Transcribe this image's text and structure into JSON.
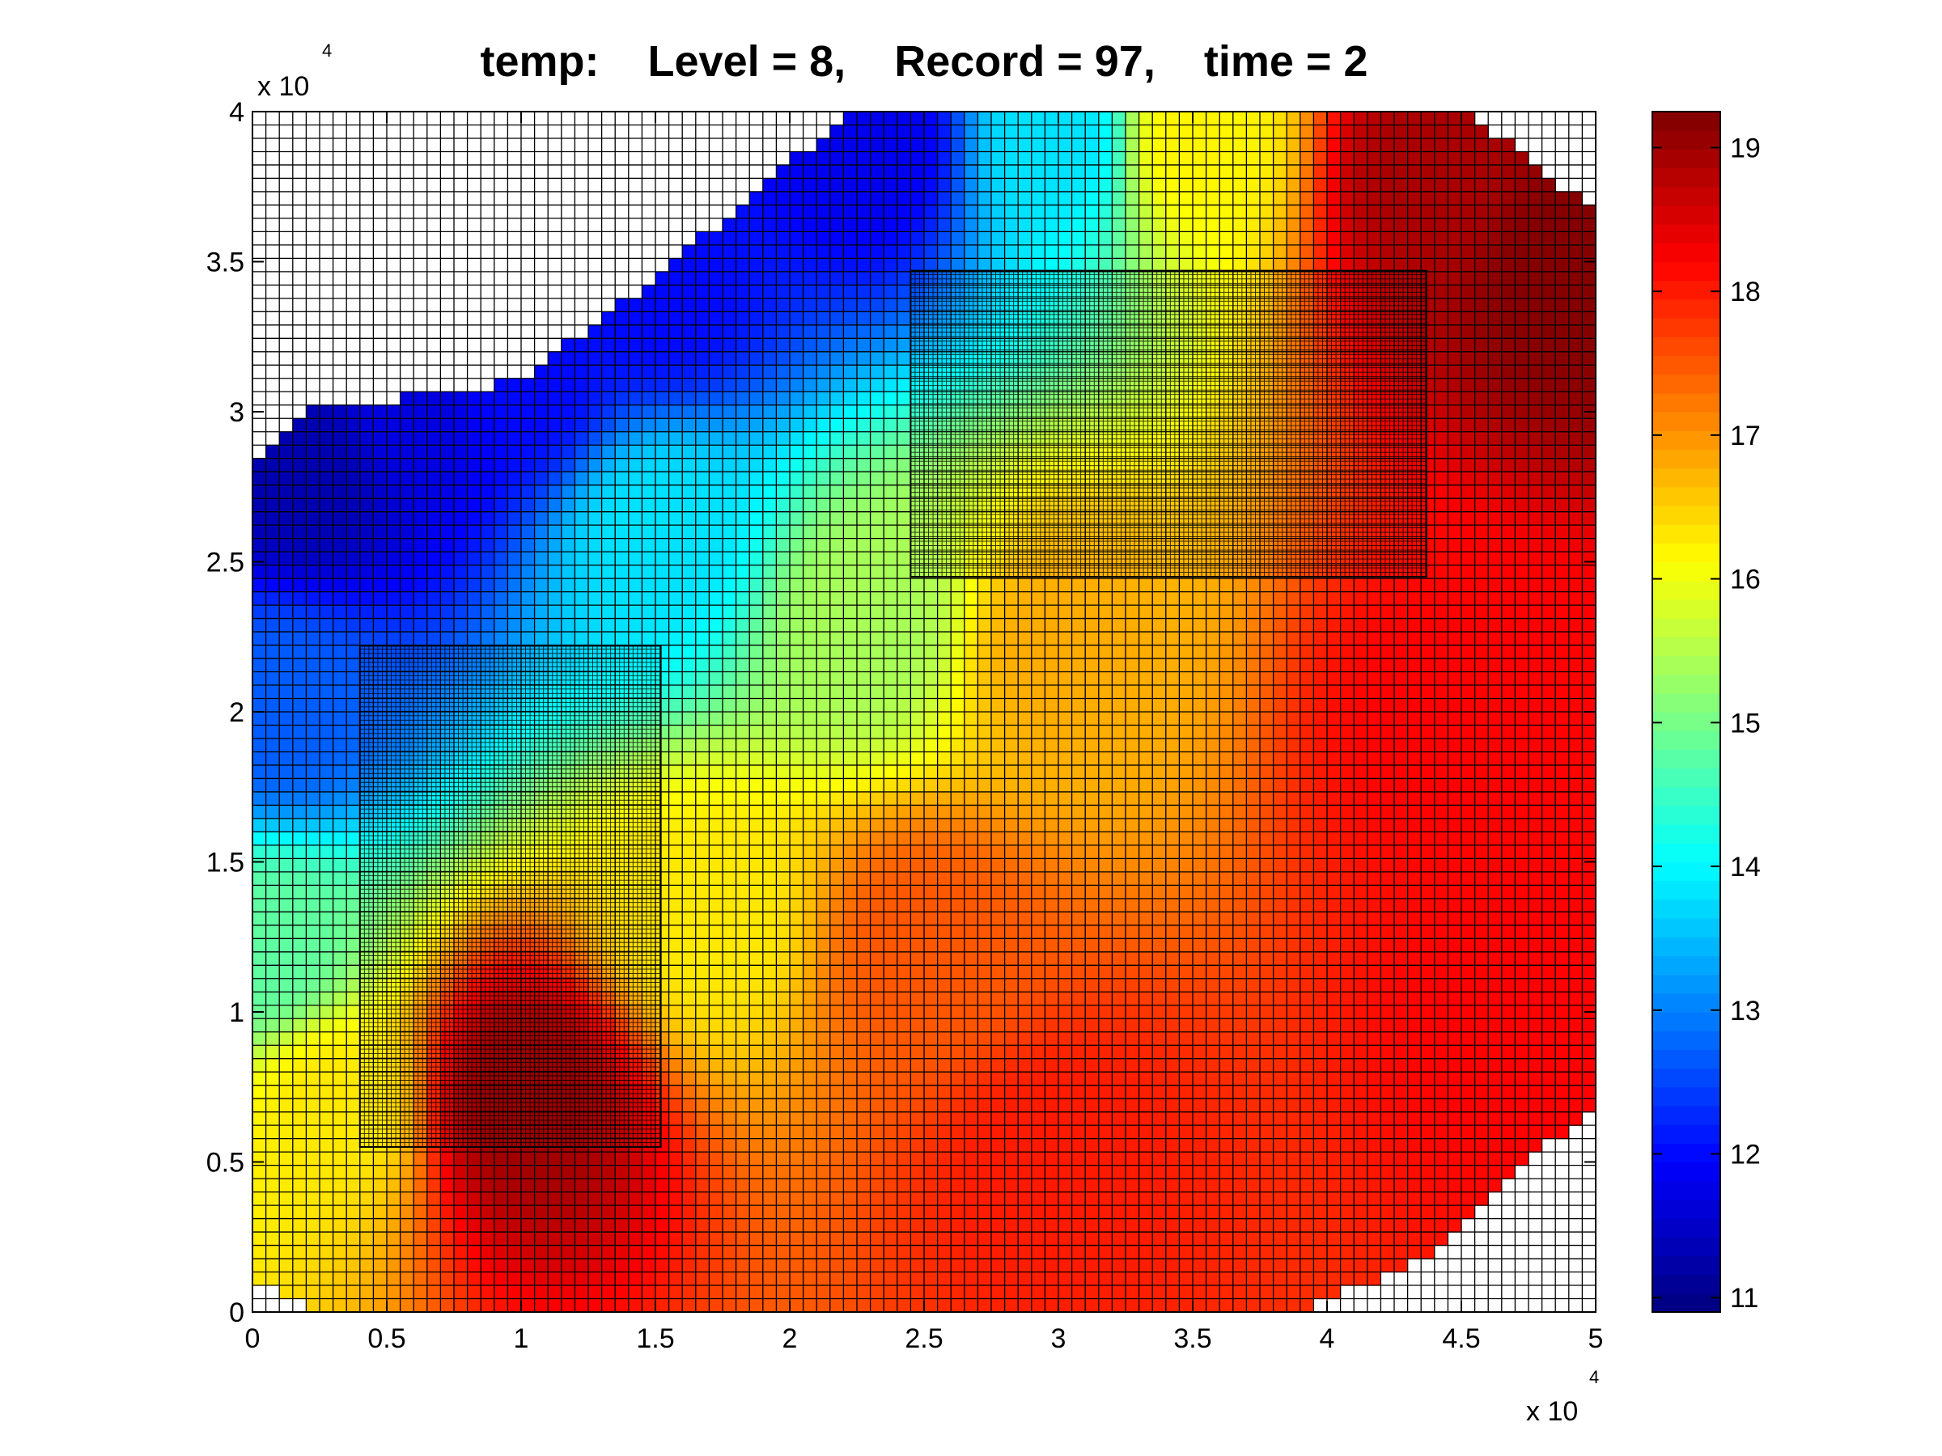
{
  "chart_data": {
    "type": "heatmap",
    "title": "temp:    Level = 8,    Record = 97,    time = 2",
    "xlabel": "",
    "ylabel": "",
    "x_exponent_label": "x 10",
    "x_exponent_power": "4",
    "y_exponent_label": "x 10",
    "y_exponent_power": "4",
    "xlim": [
      0,
      5
    ],
    "ylim": [
      0,
      4
    ],
    "x_ticks": [
      0,
      0.5,
      1,
      1.5,
      2,
      2.5,
      3,
      3.5,
      4,
      4.5,
      5
    ],
    "x_tick_labels": [
      "0",
      "0.5",
      "1",
      "1.5",
      "2",
      "2.5",
      "3",
      "3.5",
      "4",
      "4.5",
      "5"
    ],
    "y_ticks": [
      0,
      0.5,
      1,
      1.5,
      2,
      2.5,
      3,
      3.5,
      4
    ],
    "y_tick_labels": [
      "0",
      "0.5",
      "1",
      "1.5",
      "2",
      "2.5",
      "3",
      "3.5",
      "4"
    ],
    "colorbar": {
      "range": [
        10.9,
        19.25
      ],
      "ticks": [
        11,
        12,
        13,
        14,
        15,
        16,
        17,
        18,
        19
      ],
      "tick_labels": [
        "11",
        "12",
        "13",
        "14",
        "15",
        "16",
        "17",
        "18",
        "19"
      ],
      "colormap": "jet"
    },
    "grid": true,
    "refined_regions": [
      {
        "x": [
          0.4,
          1.52
        ],
        "y": [
          0.55,
          2.22
        ]
      },
      {
        "x": [
          2.45,
          4.37
        ],
        "y": [
          2.45,
          3.47
        ]
      }
    ],
    "domain_outline": [
      [
        0.02,
        0.1
      ],
      [
        0.2,
        0.02
      ],
      [
        0.4,
        0
      ],
      [
        3.9,
        0
      ],
      [
        4.4,
        0.2
      ],
      [
        4.75,
        0.5
      ],
      [
        5.02,
        0.7
      ],
      [
        5.02,
        3.65
      ],
      [
        4.5,
        4.02
      ],
      [
        2.25,
        4.02
      ],
      [
        1.5,
        3.45
      ],
      [
        1.0,
        3.1
      ],
      [
        0.6,
        3.05
      ],
      [
        0.2,
        3.0
      ],
      [
        0.02,
        2.85
      ]
    ],
    "temperature_samples": [
      {
        "x": 0.2,
        "y": 2.8,
        "value": 11.3
      },
      {
        "x": 0.6,
        "y": 3.0,
        "value": 11.7
      },
      {
        "x": 1.0,
        "y": 3.1,
        "value": 12.0
      },
      {
        "x": 1.5,
        "y": 3.4,
        "value": 12.0
      },
      {
        "x": 2.3,
        "y": 3.9,
        "value": 11.8
      },
      {
        "x": 3.0,
        "y": 3.9,
        "value": 13.8
      },
      {
        "x": 3.5,
        "y": 3.9,
        "value": 16.2
      },
      {
        "x": 4.4,
        "y": 3.8,
        "value": 18.9
      },
      {
        "x": 4.9,
        "y": 3.5,
        "value": 19.2
      },
      {
        "x": 0.1,
        "y": 2.0,
        "value": 12.7
      },
      {
        "x": 1.5,
        "y": 2.6,
        "value": 13.8
      },
      {
        "x": 2.3,
        "y": 2.3,
        "value": 15.4
      },
      {
        "x": 3.0,
        "y": 2.2,
        "value": 16.8
      },
      {
        "x": 4.5,
        "y": 2.0,
        "value": 18.2
      },
      {
        "x": 0.05,
        "y": 1.2,
        "value": 14.8
      },
      {
        "x": 0.3,
        "y": 0.7,
        "value": 16.3
      },
      {
        "x": 1.0,
        "y": 0.7,
        "value": 19.0
      },
      {
        "x": 1.7,
        "y": 1.3,
        "value": 16.3
      },
      {
        "x": 2.5,
        "y": 1.2,
        "value": 17.5
      },
      {
        "x": 3.0,
        "y": 0.5,
        "value": 18.0
      },
      {
        "x": 4.8,
        "y": 1.0,
        "value": 18.2
      }
    ]
  }
}
